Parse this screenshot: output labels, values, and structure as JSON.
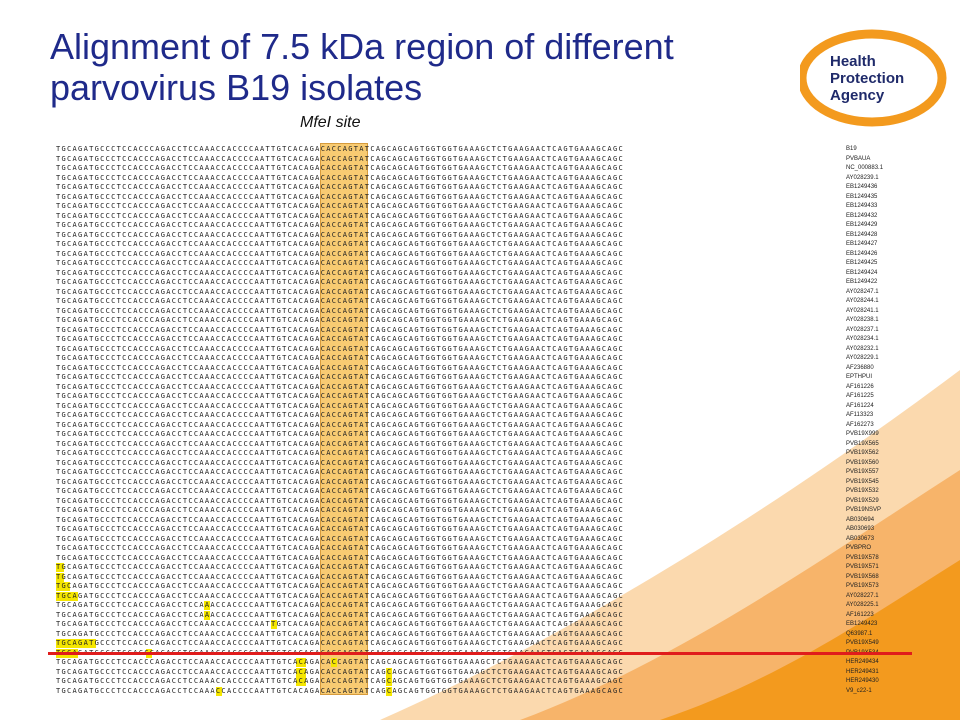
{
  "title": "Alignment of 7.5 kDa region of different parvovirus B19 isolates",
  "site_label": "MfeI site",
  "logo": {
    "line1": "Health",
    "line2": "Protection",
    "line3": "Agency"
  },
  "sequence": "TGCAGATGCCCTCCACCCAGACCTCCAAACCACCCCAATTGTCACAGACACCAGTATCAGCAGCAGTGGTGGTGAAAGCTCTGAAGAACTCAGTGAAAGCAGC",
  "isolates": [
    "B19",
    "PVBAUA",
    "NC_000883.1",
    "AY028239.1",
    "EB1249436",
    "EB1249435",
    "EB1249433",
    "EB1249432",
    "EB1249429",
    "EB1249428",
    "EB1249427",
    "EB1249426",
    "EB1249425",
    "EB1249424",
    "EB1249422",
    "AY028247.1",
    "AY028244.1",
    "AY028241.1",
    "AY028238.1",
    "AY028237.1",
    "AY028234.1",
    "AY028232.1",
    "AY028229.1",
    "AF236880",
    "EPTHPUI",
    "AF161226",
    "AF161225",
    "AF161224",
    "AF113323",
    "AF162273",
    "PVB19X999",
    "PVB19X565",
    "PVB19X562",
    "PVB19X560",
    "PVB19X557",
    "PVB19X545",
    "PVB19X532",
    "PVB19X529",
    "PVB19NSVP",
    "AB030694",
    "AB030693",
    "AB030673",
    "PVBPRO",
    "PVB19X578",
    "PVB19X571",
    "PVB19X568",
    "PVB19X573",
    "AY028227.1",
    "AY028225.1",
    "AF161223",
    "EB1249423",
    "Q63987.1",
    "PVB19X549",
    "PVB19X534",
    "HER249434",
    "HER249431",
    "HER249430",
    "V9_c22-1"
  ],
  "colors": {
    "title": "#1f2a8a",
    "highlight_box": "#f7c35a",
    "variant": "#f5e600",
    "red_line": "#e01c1c",
    "wave": "#f79a2a",
    "logo_ring": "#f39a1e",
    "logo_text": "#1f2a6a"
  }
}
